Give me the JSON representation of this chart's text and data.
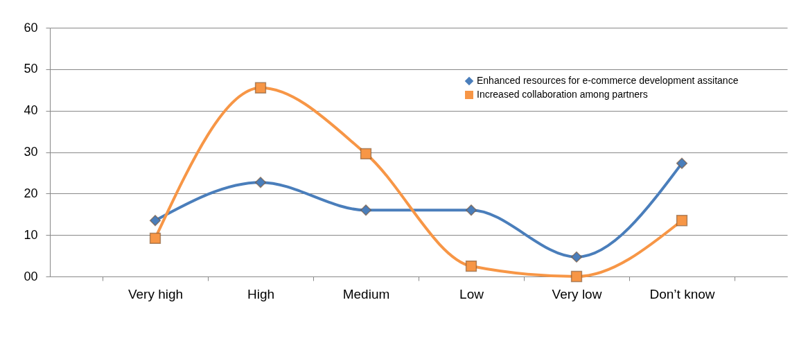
{
  "chart_data": {
    "type": "line",
    "categories": [
      "Very high",
      "High",
      "Medium",
      "Low",
      "Very low",
      "Don’t know"
    ],
    "series": [
      {
        "name": "Enhanced resources for e-commerce development assitance",
        "color": "#4a7ebb",
        "marker": "diamond",
        "values": [
          13.5,
          22.7,
          16,
          16,
          4.7,
          27.3
        ]
      },
      {
        "name": "Increased collaboration among partners",
        "color": "#f79646",
        "marker": "square",
        "values": [
          9.2,
          45.5,
          29.6,
          2.5,
          0,
          13.5
        ]
      }
    ],
    "ylim": [
      0,
      60
    ],
    "yticks": [
      {
        "value": 0,
        "label": "00"
      },
      10,
      20,
      30,
      40,
      50,
      60
    ],
    "grid": "y",
    "legend": "top right",
    "line_style": "solid"
  }
}
